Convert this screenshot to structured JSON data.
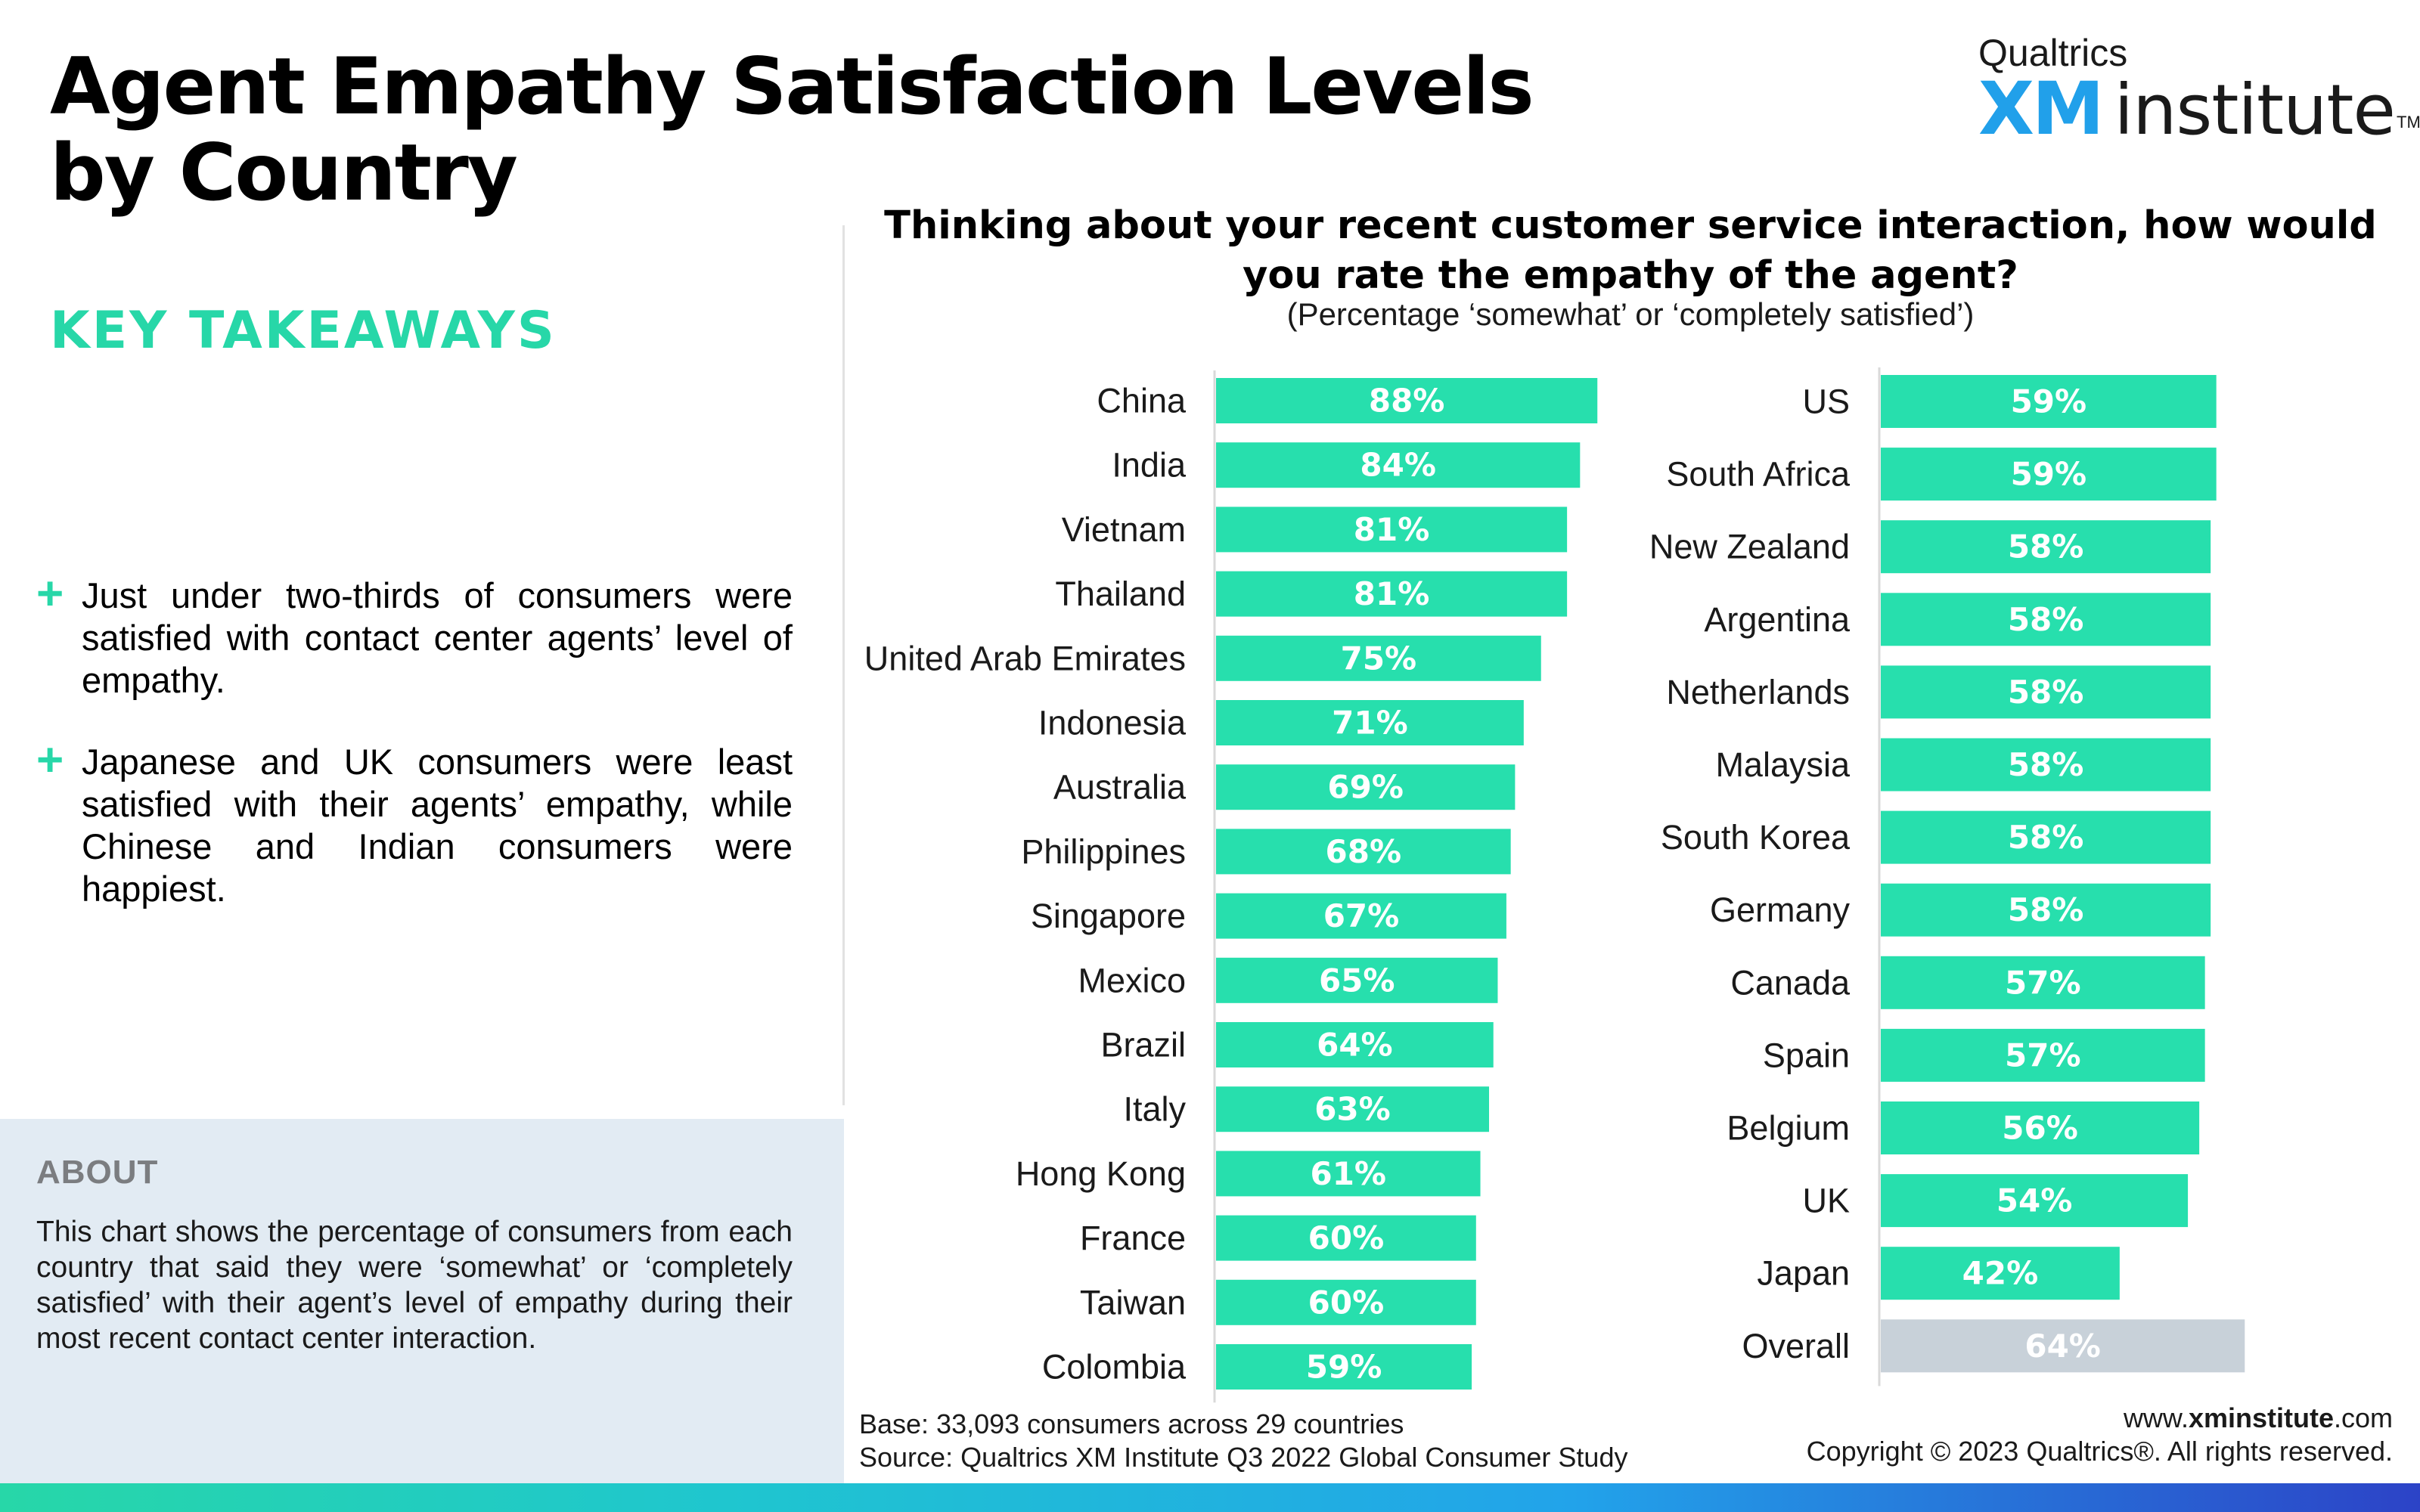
{
  "title_lines": [
    "Agent Empathy Satisfaction Levels",
    "by Country"
  ],
  "logo": {
    "brand": "Qualtrics",
    "xm": "XM",
    "name": "institute",
    "tm": "TM"
  },
  "key_takeaways": {
    "heading": "KEY TAKEAWAYS",
    "bullets": [
      "Just under two-thirds of consumers were satisfied with contact center agents’ level of empathy.",
      "Japanese and UK consumers were least satisfied with their agents’ empathy, while Chinese and Indian consumers were happiest."
    ]
  },
  "about": {
    "heading": "ABOUT",
    "text": "This chart shows the percentage of consumers from each country that said they were ‘somewhat’ or ‘completely satisfied’ with their agent’s level of empathy during their most recent contact center interaction."
  },
  "footer": {
    "base": "Base: 33,093 consumers across 29 countries",
    "source": "Source: Qualtrics XM Institute Q3 2022 Global Consumer Study",
    "url_prefix": "www.",
    "url_bold": "xminstitute",
    "url_suffix": ".com",
    "copyright": "Copyright © 2023 Qualtrics®. All rights reserved."
  },
  "colors": {
    "bar": "#27dfad",
    "overall_bar": "#c8d1d9",
    "accent": "#27d7a8",
    "logo_blue": "#21a0ea"
  },
  "chart_data": {
    "type": "bar",
    "orientation": "horizontal",
    "title": "Thinking about your recent customer service interaction, how would you rate the empathy of the agent?",
    "subtitle": "(Percentage ‘somewhat’ or ‘completely satisfied’)",
    "unit": "%",
    "xlim": [
      0,
      100
    ],
    "grid": false,
    "panels": [
      {
        "categories": [
          "China",
          "India",
          "Vietnam",
          "Thailand",
          "United Arab Emirates",
          "Indonesia",
          "Australia",
          "Philippines",
          "Singapore",
          "Mexico",
          "Brazil",
          "Italy",
          "Hong Kong",
          "France",
          "Taiwan",
          "Colombia"
        ],
        "values": [
          88,
          84,
          81,
          81,
          75,
          71,
          69,
          68,
          67,
          65,
          64,
          63,
          61,
          60,
          60,
          59
        ]
      },
      {
        "categories": [
          "US",
          "South Africa",
          "New Zealand",
          "Argentina",
          "Netherlands",
          "Malaysia",
          "South Korea",
          "Germany",
          "Canada",
          "Spain",
          "Belgium",
          "UK",
          "Japan",
          "Overall"
        ],
        "values": [
          59,
          59,
          58,
          58,
          58,
          58,
          58,
          58,
          57,
          57,
          56,
          54,
          42,
          64
        ],
        "highlight": "Overall"
      }
    ]
  }
}
